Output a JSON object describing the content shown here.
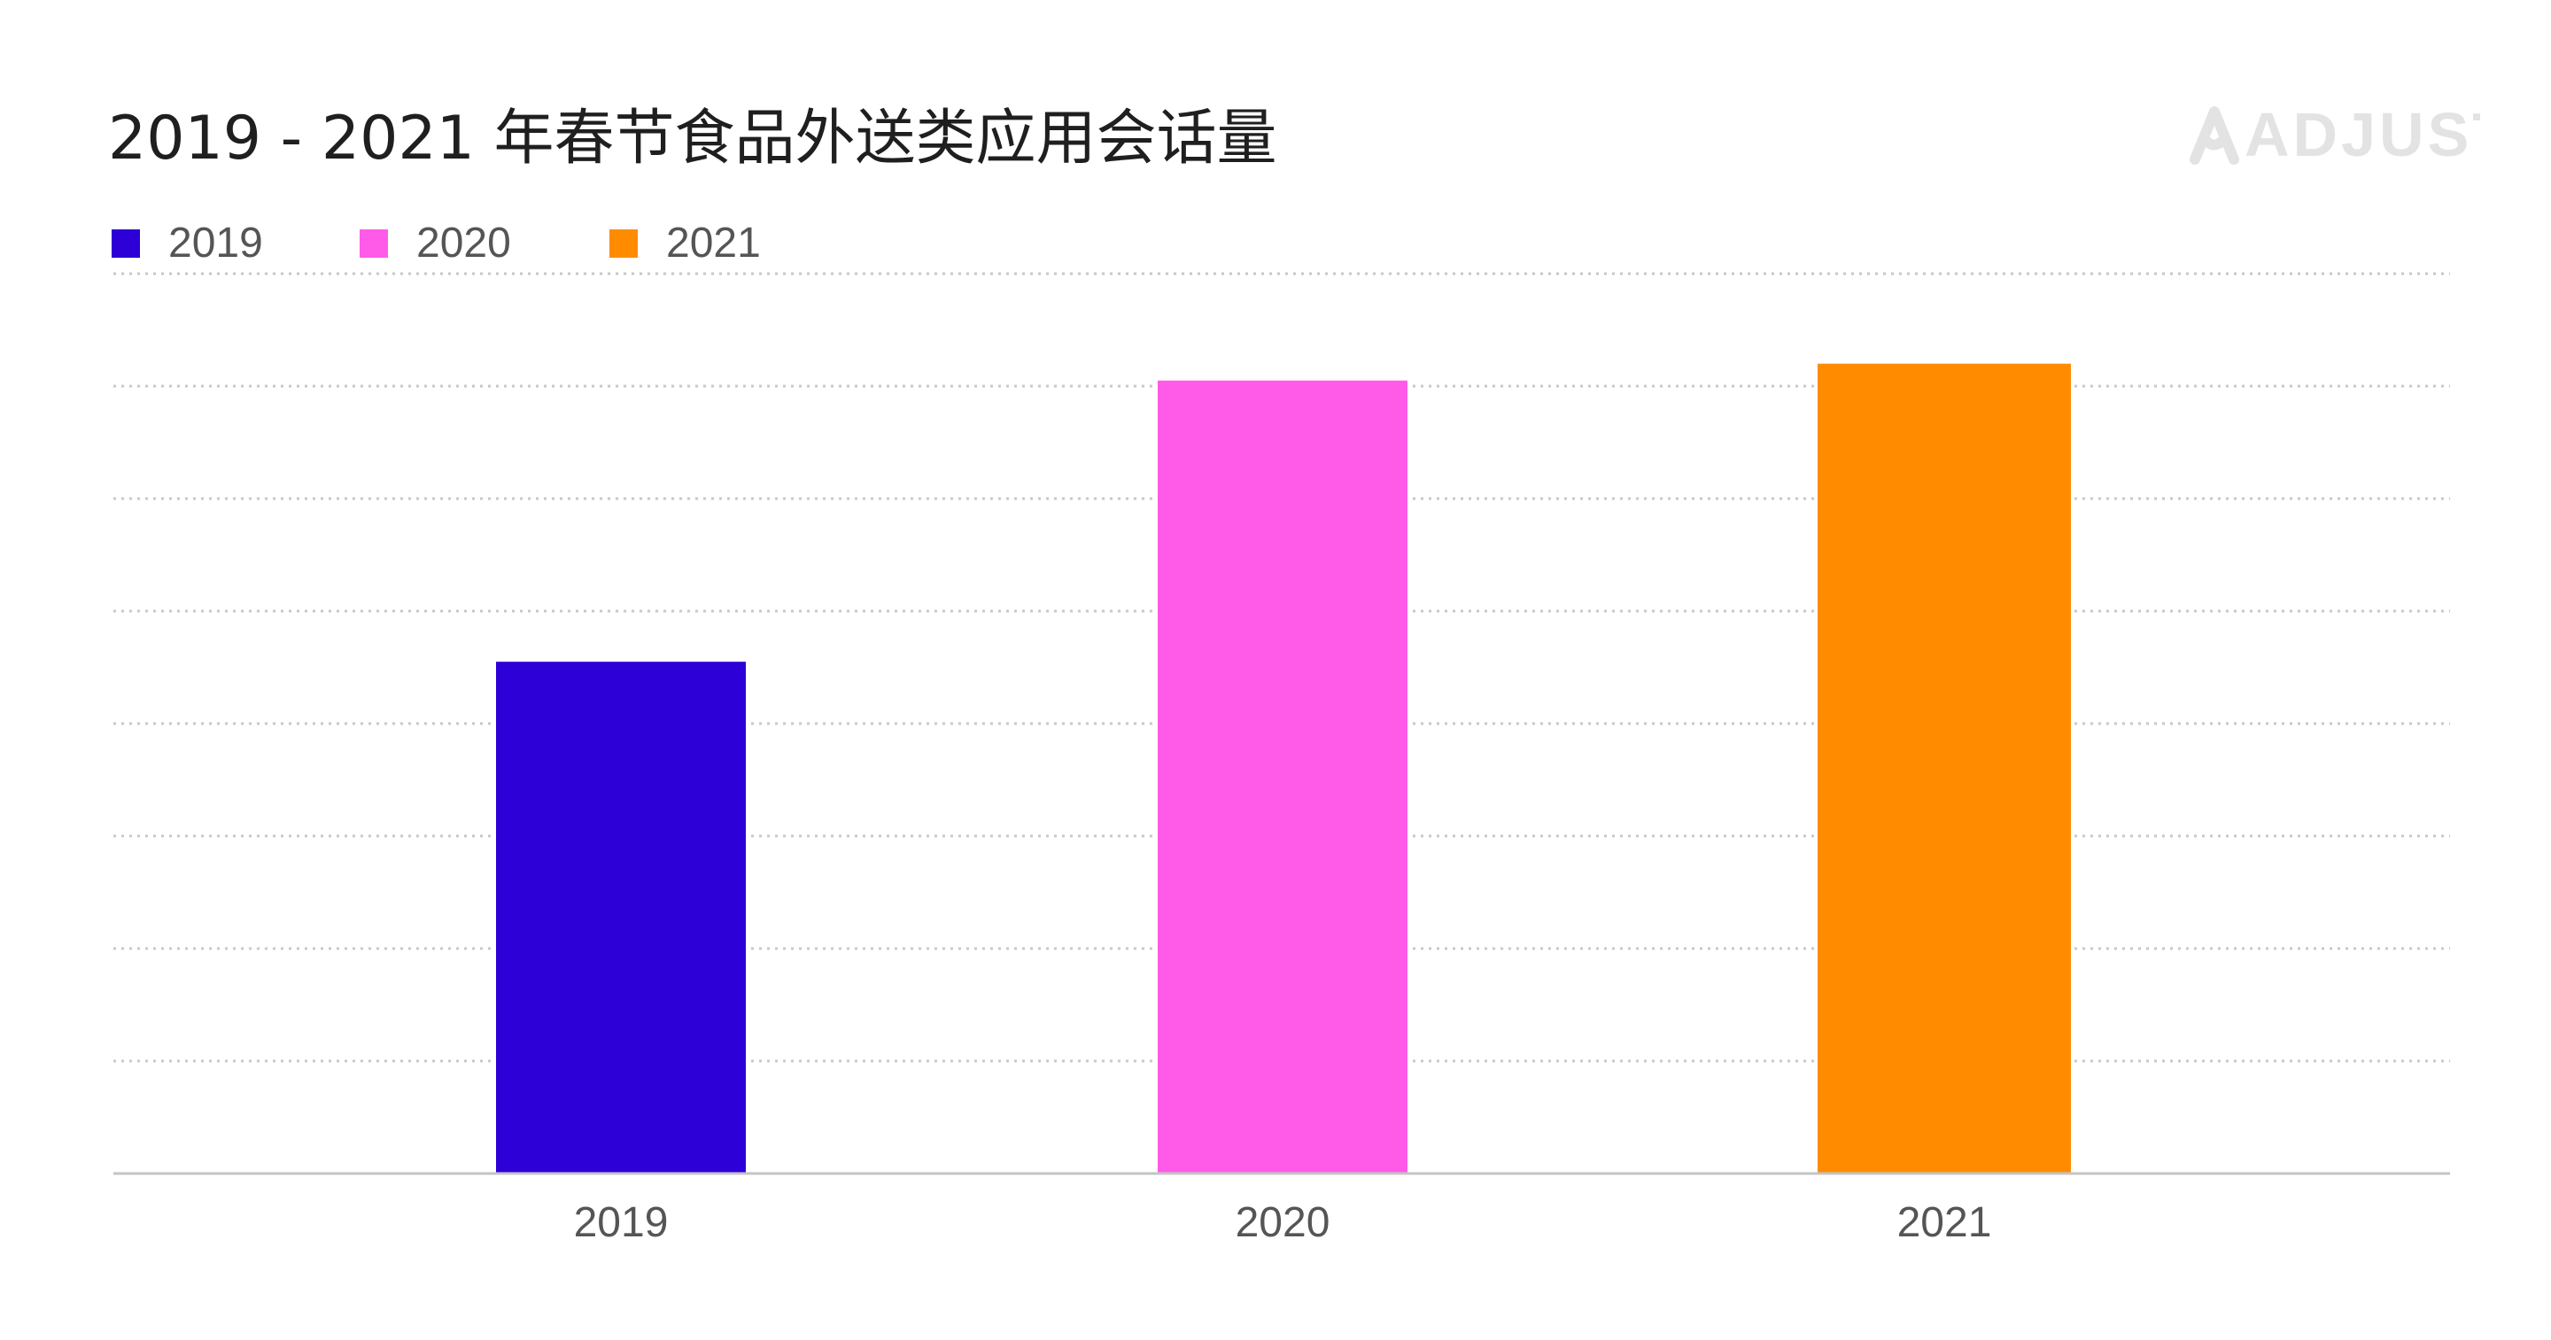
{
  "title": "2019 - 2021 年春节食品外送类应用会话量",
  "brand": {
    "name": "ADJUST",
    "icon": "adjust-logo-icon",
    "color": "#e3e3e3"
  },
  "legend": [
    {
      "label": "2019",
      "color": "#2c00d6"
    },
    {
      "label": "2020",
      "color": "#ff5ae8"
    },
    {
      "label": "2021",
      "color": "#ff8c00"
    }
  ],
  "chart_data": {
    "type": "bar",
    "title": "2019 - 2021 年春节食品外送类应用会话量",
    "categories": [
      "2019",
      "2020",
      "2021"
    ],
    "series": [
      {
        "name": "2019",
        "values": [
          4.55,
          null,
          null
        ],
        "color": "#2c00d6"
      },
      {
        "name": "2020",
        "values": [
          null,
          7.05,
          null
        ],
        "color": "#ff5ae8"
      },
      {
        "name": "2021",
        "values": [
          null,
          null,
          7.2
        ],
        "color": "#ff8c00"
      }
    ],
    "values": [
      4.55,
      7.05,
      7.2
    ],
    "colors": [
      "#2c00d6",
      "#ff5ae8",
      "#ff8c00"
    ],
    "ylim": [
      0,
      8.15
    ],
    "gridlines": [
      1,
      2,
      3,
      4,
      5,
      6,
      7,
      8
    ],
    "grid": true,
    "y_ticks_labeled": false,
    "legend_position": "top-left",
    "xlabel": "",
    "ylabel": ""
  }
}
